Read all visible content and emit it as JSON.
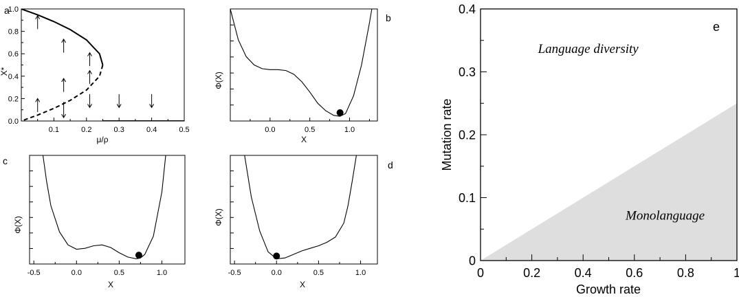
{
  "chart_data": [
    {
      "panel": "a",
      "type": "line",
      "xlabel": "μ/ρ",
      "ylabel": "X*",
      "xlim": [
        0,
        0.5
      ],
      "ylim": [
        0,
        1.0
      ],
      "xticks": [
        "0.1",
        "0.2",
        "0.3",
        "0.4",
        "0.5"
      ],
      "yticks": [
        "0.0",
        "0.2",
        "0.4",
        "0.6",
        "0.8",
        "1.0"
      ],
      "series": [
        {
          "style": "solid-thick",
          "x": [
            0,
            0.05,
            0.1,
            0.15,
            0.2,
            0.24,
            0.25
          ],
          "y": [
            1.0,
            0.947,
            0.887,
            0.816,
            0.724,
            0.6,
            0.5
          ]
        },
        {
          "style": "dashed-thick",
          "x": [
            0.25,
            0.24,
            0.2,
            0.15,
            0.1,
            0.05,
            0
          ],
          "y": [
            0.5,
            0.4,
            0.276,
            0.184,
            0.113,
            0.053,
            0
          ]
        },
        {
          "style": "solid-thick",
          "x": [
            0.25,
            0.5
          ],
          "y": [
            0,
            0
          ]
        }
      ],
      "arrows": [
        {
          "x": 0.05,
          "y0": 0.82,
          "y1": 0.94,
          "dir": "up"
        },
        {
          "x": 0.05,
          "y0": 0.08,
          "y1": 0.2,
          "dir": "up"
        },
        {
          "x": 0.13,
          "y0": 0.61,
          "y1": 0.73,
          "dir": "up"
        },
        {
          "x": 0.13,
          "y0": 0.26,
          "y1": 0.38,
          "dir": "up"
        },
        {
          "x": 0.13,
          "y0": 0.17,
          "y1": 0.03,
          "dir": "down"
        },
        {
          "x": 0.21,
          "y0": 0.49,
          "y1": 0.61,
          "dir": "up"
        },
        {
          "x": 0.21,
          "y0": 0.33,
          "y1": 0.45,
          "dir": "up"
        },
        {
          "x": 0.21,
          "y0": 0.24,
          "y1": 0.12,
          "dir": "down"
        },
        {
          "x": 0.3,
          "y0": 0.24,
          "y1": 0.12,
          "dir": "down"
        },
        {
          "x": 0.4,
          "y0": 0.24,
          "y1": 0.12,
          "dir": "down"
        }
      ]
    },
    {
      "panel": "b",
      "type": "line",
      "xlabel": "X",
      "ylabel": "Φ(X)",
      "xlim": [
        -0.5,
        1.35
      ],
      "xticks": [
        "0.0",
        "0.5",
        "1.0"
      ],
      "x": [
        -0.5,
        -0.4,
        -0.3,
        -0.2,
        -0.1,
        0.0,
        0.1,
        0.2,
        0.3,
        0.4,
        0.5,
        0.6,
        0.7,
        0.8,
        0.88,
        0.95,
        1.05,
        1.15,
        1.25,
        1.3
      ],
      "y": [
        1.15,
        0.82,
        0.64,
        0.55,
        0.51,
        0.5,
        0.5,
        0.49,
        0.45,
        0.37,
        0.26,
        0.14,
        0.06,
        0.01,
        0.0,
        0.03,
        0.22,
        0.55,
        1.0,
        1.25
      ],
      "ylim": [
        -0.05,
        1.15
      ],
      "marker": {
        "x": 0.88,
        "y": 0.01
      }
    },
    {
      "panel": "c",
      "type": "line",
      "xlabel": "X",
      "ylabel": "Φ(X)",
      "xlim": [
        -0.55,
        1.27
      ],
      "xticks": [
        "-0.5",
        "0.0",
        "0.5",
        "1.0"
      ],
      "x": [
        -0.4,
        -0.35,
        -0.3,
        -0.2,
        -0.1,
        0.0,
        0.1,
        0.2,
        0.3,
        0.4,
        0.5,
        0.6,
        0.7,
        0.75,
        0.8,
        0.9,
        1.0,
        1.05
      ],
      "y": [
        1.25,
        0.9,
        0.62,
        0.32,
        0.17,
        0.12,
        0.13,
        0.16,
        0.17,
        0.14,
        0.08,
        0.03,
        0.01,
        0.02,
        0.06,
        0.27,
        0.78,
        1.25
      ],
      "ylim": [
        -0.05,
        1.2
      ],
      "marker": {
        "x": 0.73,
        "y": 0.02
      }
    },
    {
      "panel": "d",
      "type": "line",
      "xlabel": "X",
      "ylabel": "Φ(X)",
      "xlim": [
        -0.55,
        1.2
      ],
      "xticks": [
        "-0.5",
        "0.0",
        "0.5",
        "1.0"
      ],
      "x": [
        -0.38,
        -0.3,
        -0.2,
        -0.1,
        0.0,
        0.1,
        0.2,
        0.3,
        0.4,
        0.5,
        0.6,
        0.7,
        0.8,
        0.85,
        0.9,
        0.95
      ],
      "y": [
        1.2,
        0.72,
        0.33,
        0.09,
        0.01,
        0.02,
        0.06,
        0.1,
        0.13,
        0.16,
        0.2,
        0.26,
        0.42,
        0.62,
        0.9,
        1.2
      ],
      "ylim": [
        -0.05,
        1.2
      ],
      "marker": {
        "x": 0.0,
        "y": 0.01
      }
    },
    {
      "panel": "e",
      "type": "area",
      "xlabel": "Growth rate",
      "ylabel": "Mutation rate",
      "xlim": [
        0,
        1
      ],
      "ylim": [
        0,
        0.4
      ],
      "xticks": [
        "0",
        "0.2",
        "0.4",
        "0.6",
        "0.8",
        "1"
      ],
      "yticks": [
        "0",
        "0.1",
        "0.2",
        "0.3",
        "0.4"
      ],
      "boundary": {
        "x": [
          0,
          1
        ],
        "y": [
          0,
          0.25
        ]
      },
      "fill_color": "#dedede",
      "regions": [
        {
          "label": "Language diversity",
          "x": 0.42,
          "y": 0.33
        },
        {
          "label": "Monolanguage",
          "x": 0.72,
          "y": 0.065
        }
      ]
    }
  ]
}
